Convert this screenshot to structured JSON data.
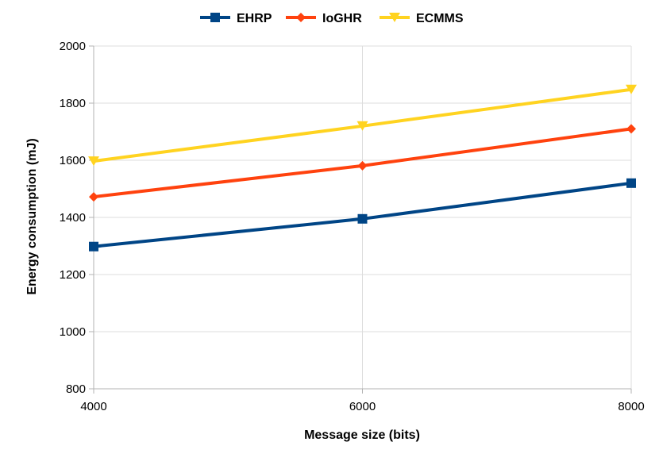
{
  "chart_data": {
    "type": "line",
    "title": "",
    "xlabel": "Message size (bits)",
    "ylabel": "Energy consumption (mJ)",
    "x": [
      4000,
      6000,
      8000
    ],
    "xlim": [
      4000,
      8000
    ],
    "ylim": [
      800,
      2000
    ],
    "xticks": [
      "4000",
      "6000",
      "8000"
    ],
    "yticks": [
      "800",
      "1000",
      "1200",
      "1400",
      "1600",
      "1800",
      "2000"
    ],
    "grid": true,
    "legend_position": "top",
    "series": [
      {
        "name": "EHRP",
        "values": [
          1298,
          1395,
          1520
        ],
        "color": "#004586",
        "marker": "square"
      },
      {
        "name": "IoGHR",
        "values": [
          1472,
          1581,
          1710
        ],
        "color": "#ff420e",
        "marker": "diamond"
      },
      {
        "name": "ECMMS",
        "values": [
          1597,
          1720,
          1848
        ],
        "color": "#ffd320",
        "marker": "triangle-down"
      }
    ]
  }
}
